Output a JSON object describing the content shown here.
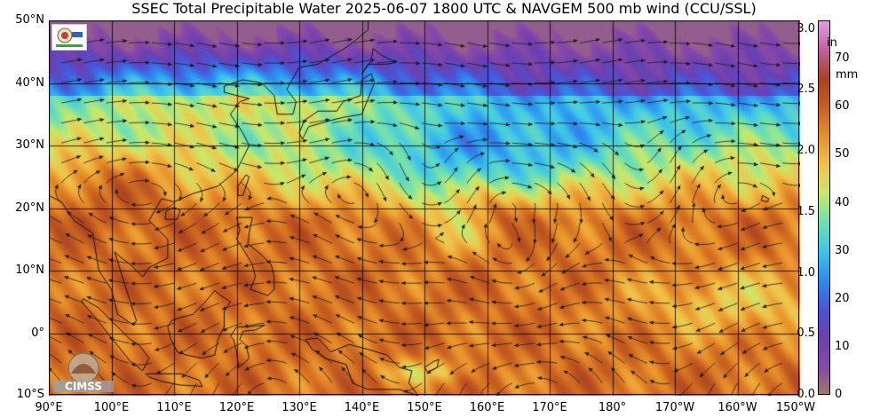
{
  "title": "SSEC Total Precipitable Water  2025-06-07 1800 UTC & NAVGEM 500 mb wind (CCU/SSL)",
  "map": {
    "lat_labels": [
      "50°N",
      "40°N",
      "30°N",
      "20°N",
      "10°N",
      "0°",
      "10°S"
    ],
    "lat_values": [
      50,
      40,
      30,
      20,
      10,
      0,
      -10
    ],
    "lon_labels": [
      "90°E",
      "100°E",
      "110°E",
      "120°E",
      "130°E",
      "140°E",
      "150°E",
      "160°E",
      "170°E",
      "180°",
      "170°W",
      "160°W",
      "150°W"
    ],
    "lon_values": [
      90,
      100,
      110,
      120,
      130,
      140,
      150,
      160,
      170,
      180,
      190,
      200,
      210
    ],
    "lat_range": [
      -10,
      50
    ],
    "lon_range": [
      90,
      210
    ]
  },
  "colorbar": {
    "inch_unit": "in",
    "mm_unit": "mm",
    "inch_ticks": [
      "3.0",
      "2.5",
      "2.0",
      "1.5",
      "1.0",
      "0.5",
      "0.0"
    ],
    "inch_values": [
      3.0,
      2.5,
      2.0,
      1.5,
      1.0,
      0.5,
      0.0
    ],
    "mm_ticks": [
      "70",
      "60",
      "50",
      "40",
      "30",
      "20",
      "10",
      "0"
    ],
    "mm_values": [
      70,
      60,
      50,
      40,
      30,
      20,
      10,
      0
    ],
    "mm_range": [
      0,
      78
    ],
    "colors": {
      "0": "#a07a64",
      "5": "#8a4aa8",
      "12": "#6b40b0",
      "18": "#4a55d8",
      "24": "#2b8ff0",
      "30": "#3fc8e8",
      "36": "#6fe0b0",
      "42": "#c8e86a",
      "48": "#f0c44a",
      "54": "#e8902a",
      "60": "#c86020",
      "66": "#a84020",
      "72": "#c060a0",
      "78": "#e0a0e0"
    }
  },
  "logos": {
    "cimss_text": "CIMSS"
  },
  "colors": {
    "land_outline": "#111111",
    "gridline": "#000000",
    "wind_arrow": "#1a1a1a"
  }
}
